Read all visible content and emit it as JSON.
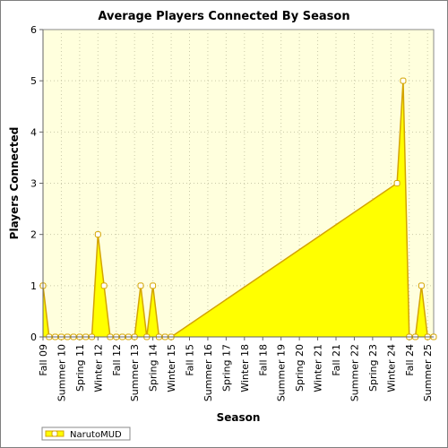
{
  "chart_data": {
    "type": "area",
    "title": "Average Players Connected By Season",
    "xlabel": "Season",
    "ylabel": "Players Connected",
    "ylim": [
      0,
      6
    ],
    "y_ticks": [
      "0",
      "1",
      "2",
      "3",
      "4",
      "5",
      "6"
    ],
    "grid": true,
    "legend_position": "bottom-left",
    "tick_labels": [
      "Fall 09",
      "Summer 10",
      "Spring 11",
      "Winter 12",
      "Fall 12",
      "Summer 13",
      "Spring 14",
      "Winter 15",
      "Fall 15",
      "Summer 16",
      "Spring 17",
      "Winter 18",
      "Fall 18",
      "Summer 19",
      "Spring 20",
      "Winter 21",
      "Fall 21",
      "Summer 22",
      "Spring 23",
      "Winter 24",
      "Fall 24",
      "Summer 25"
    ],
    "tick_label_index": [
      0,
      3,
      6,
      9,
      12,
      15,
      18,
      21,
      24,
      27,
      30,
      33,
      36,
      39,
      42,
      45,
      48,
      51,
      54,
      57,
      60,
      63
    ],
    "series": [
      {
        "name": "NarutoMUD",
        "color": "#ffff00",
        "stroke": "#d4a400",
        "points": [
          {
            "x": 0,
            "y": 1
          },
          {
            "x": 1,
            "y": 0
          },
          {
            "x": 2,
            "y": 0
          },
          {
            "x": 3,
            "y": 0
          },
          {
            "x": 4,
            "y": 0
          },
          {
            "x": 5,
            "y": 0
          },
          {
            "x": 6,
            "y": 0
          },
          {
            "x": 7,
            "y": 0
          },
          {
            "x": 8,
            "y": 0
          },
          {
            "x": 9,
            "y": 2
          },
          {
            "x": 10,
            "y": 1
          },
          {
            "x": 11,
            "y": 0
          },
          {
            "x": 12,
            "y": 0
          },
          {
            "x": 13,
            "y": 0
          },
          {
            "x": 14,
            "y": 0
          },
          {
            "x": 15,
            "y": 0
          },
          {
            "x": 16,
            "y": 1
          },
          {
            "x": 17,
            "y": 0
          },
          {
            "x": 18,
            "y": 1
          },
          {
            "x": 19,
            "y": 0
          },
          {
            "x": 20,
            "y": 0
          },
          {
            "x": 21,
            "y": 0
          },
          {
            "x": 58,
            "y": 3
          },
          {
            "x": 59,
            "y": 5
          },
          {
            "x": 60,
            "y": 0
          },
          {
            "x": 61,
            "y": 0
          },
          {
            "x": 62,
            "y": 1
          },
          {
            "x": 63,
            "y": 0
          },
          {
            "x": 64,
            "y": 0
          }
        ]
      }
    ]
  }
}
